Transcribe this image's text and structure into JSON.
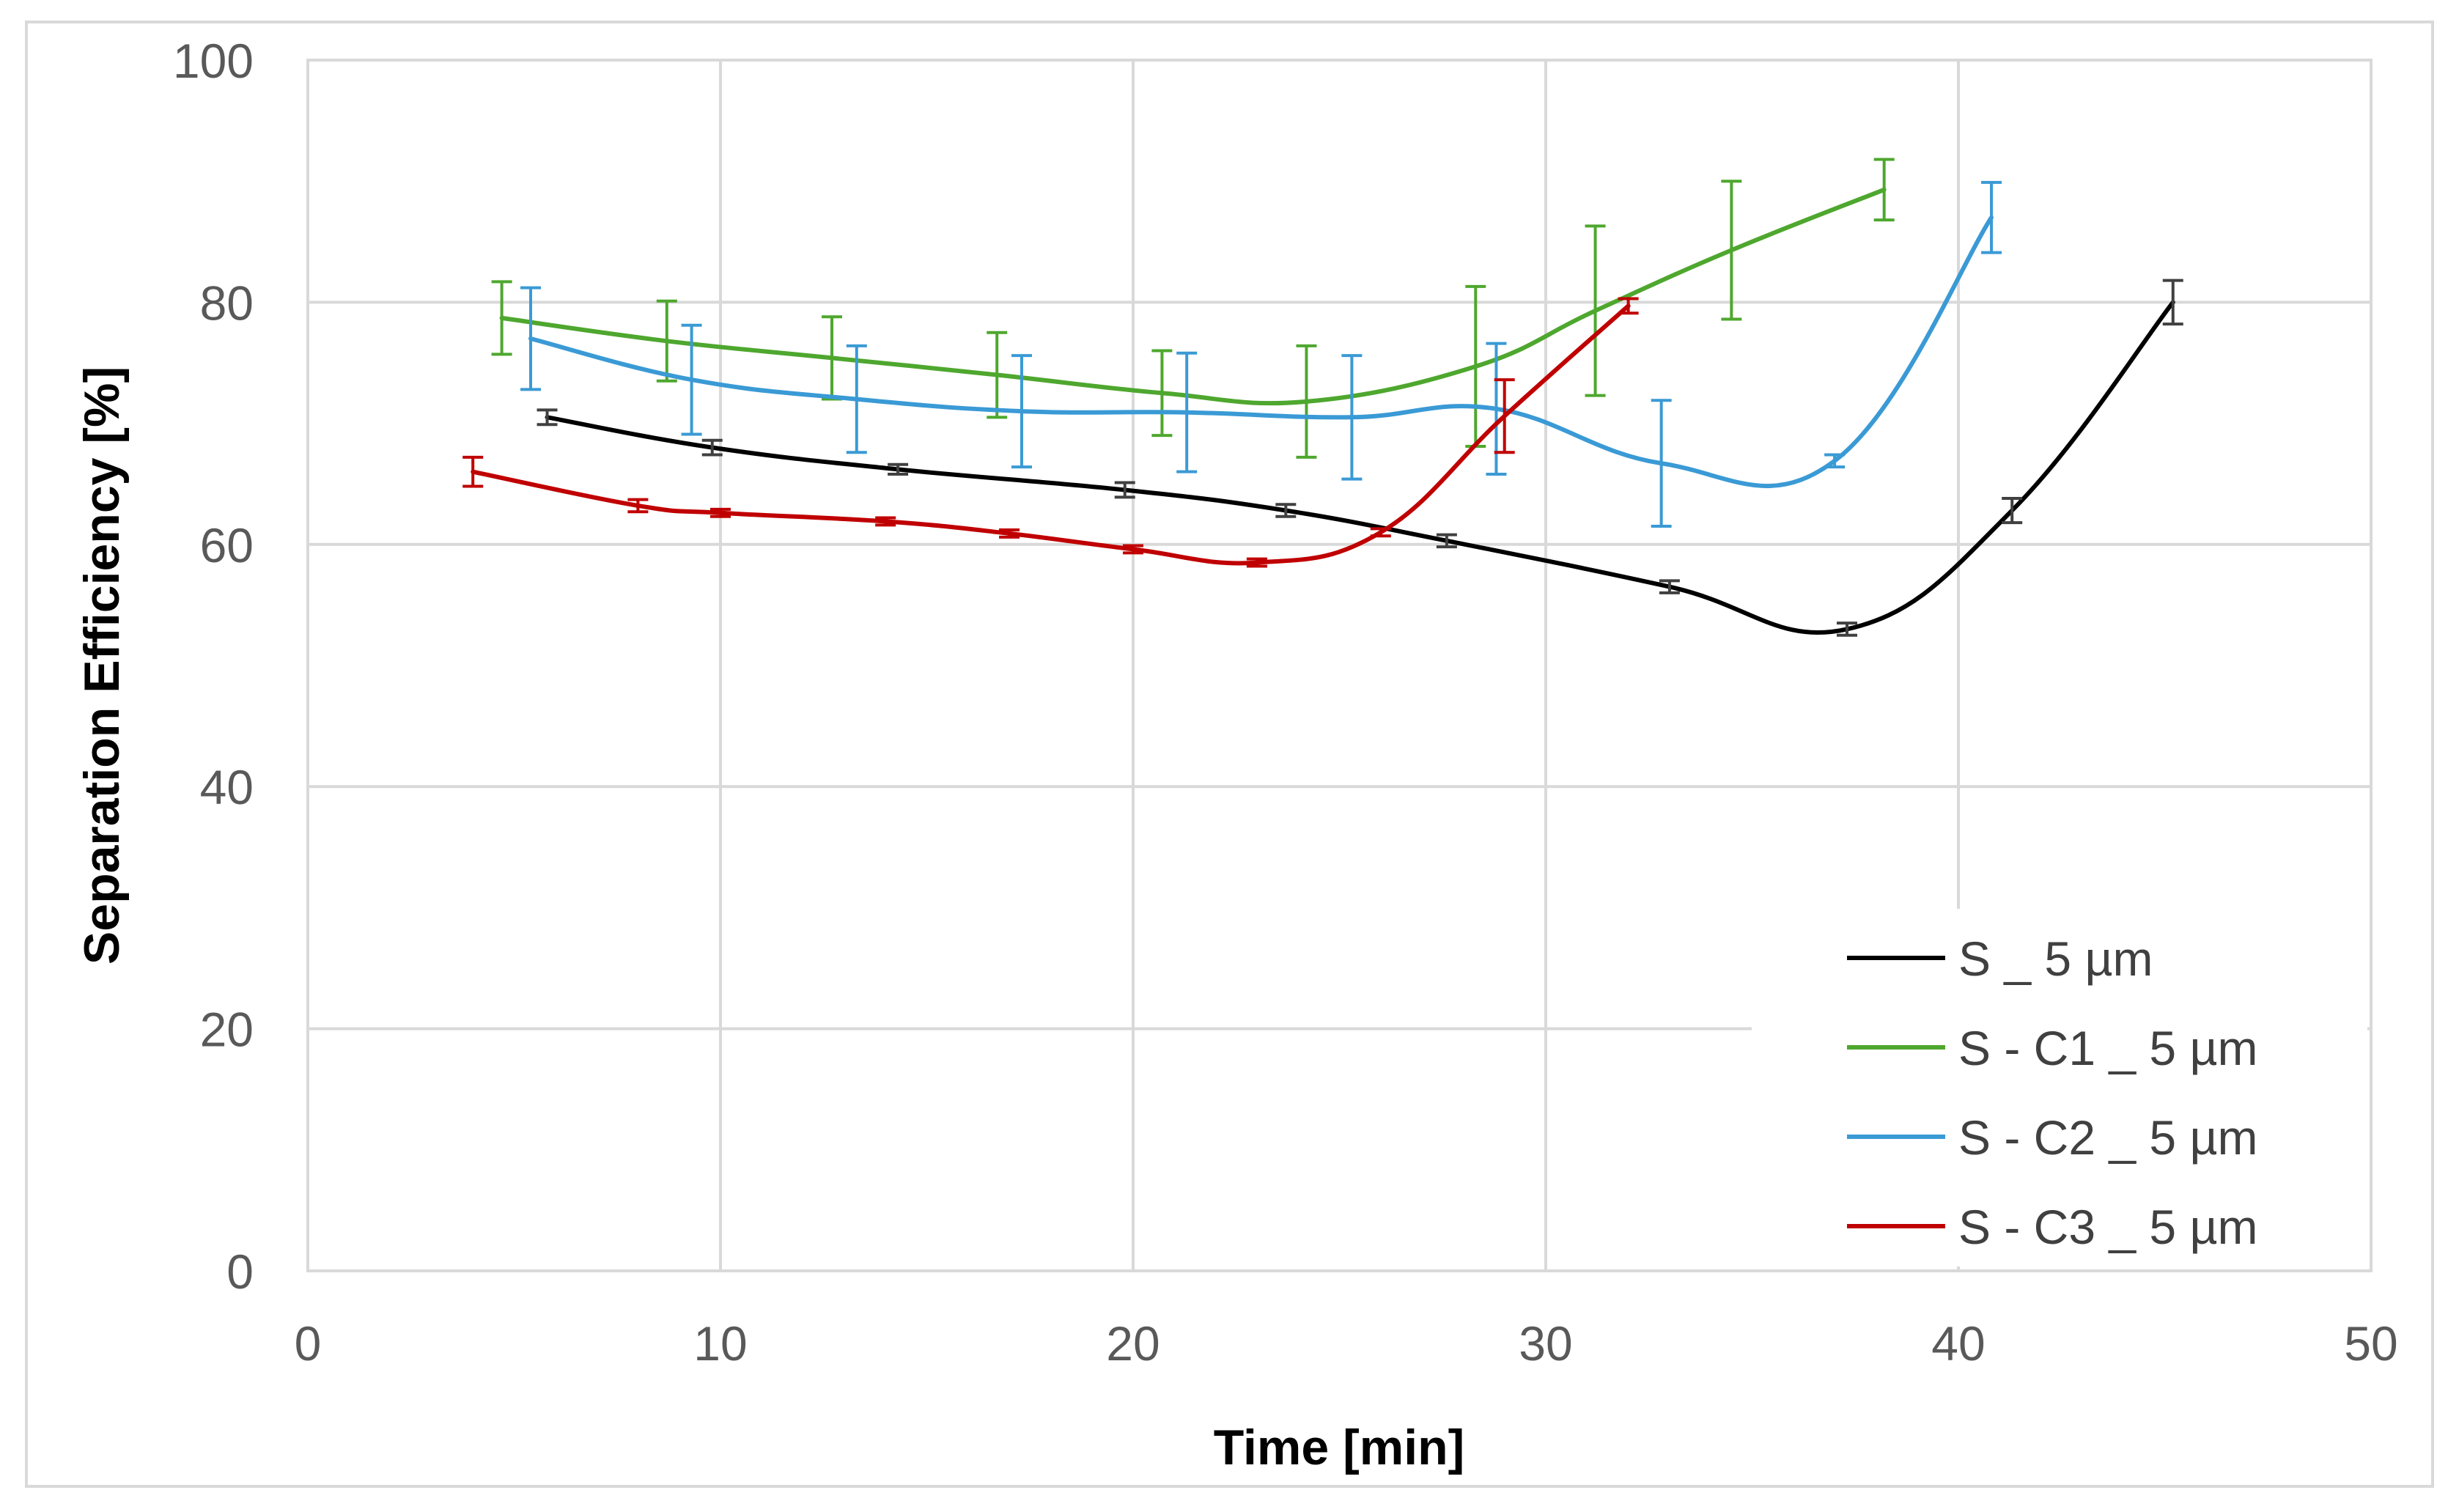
{
  "chart_data": {
    "type": "line",
    "title": "",
    "xlabel": "Time [min]",
    "ylabel": "Separation Efficiency [%]",
    "xlim": [
      0,
      50
    ],
    "ylim": [
      0,
      100
    ],
    "x_ticks": [
      0,
      10,
      20,
      30,
      40,
      50
    ],
    "y_ticks": [
      0,
      20,
      40,
      60,
      80,
      100
    ],
    "x_tick_labels": [
      "0",
      "10",
      "20",
      "30",
      "40",
      "50"
    ],
    "y_tick_labels": [
      "0",
      "20",
      "40",
      "60",
      "80",
      "100"
    ],
    "grid": true,
    "legend_position": "bottom-right",
    "series": [
      {
        "name": "S _ 5 µm",
        "color": "#000000",
        "errorbar_color": "#404040",
        "x": [
          5.8,
          9.8,
          14.3,
          19.8,
          23.7,
          27.6,
          33.0,
          37.3,
          41.3,
          45.2
        ],
        "y": [
          70.5,
          68.0,
          66.2,
          64.5,
          62.8,
          60.3,
          56.5,
          53.0,
          62.8,
          80.0
        ],
        "err": [
          0.6,
          0.6,
          0.4,
          0.6,
          0.5,
          0.5,
          0.5,
          0.5,
          1.0,
          1.8
        ]
      },
      {
        "name": "S - C1 _ 5 µm",
        "color": "#4EA72E",
        "errorbar_color": "#4EA72E",
        "x": [
          4.7,
          8.7,
          12.7,
          16.7,
          20.7,
          24.2,
          28.3,
          31.2,
          34.5,
          38.2
        ],
        "y": [
          78.7,
          76.8,
          75.4,
          74.0,
          72.5,
          71.8,
          74.7,
          79.3,
          84.3,
          89.3
        ],
        "err": [
          3.0,
          3.3,
          3.4,
          3.5,
          3.5,
          4.6,
          6.6,
          7.0,
          5.7,
          2.5
        ]
      },
      {
        "name": "S - C2 _ 5 µm",
        "color": "#3A9AD5",
        "errorbar_color": "#3A9AD5",
        "x": [
          5.4,
          9.3,
          13.3,
          17.3,
          21.3,
          25.3,
          28.8,
          32.8,
          37.0,
          40.8
        ],
        "y": [
          77.0,
          73.6,
          72.0,
          71.0,
          70.9,
          70.5,
          71.2,
          66.7,
          66.9,
          87.0
        ],
        "err": [
          4.2,
          4.5,
          4.4,
          4.6,
          4.9,
          5.1,
          5.4,
          5.2,
          0.5,
          2.9
        ]
      },
      {
        "name": "S - C3 _ 5 µm",
        "color": "#C00000",
        "errorbar_color": "#C00000",
        "x": [
          4.0,
          8.0,
          10.0,
          14.0,
          17.0,
          20.0,
          23.0,
          26.0,
          29.0,
          32.0
        ],
        "y": [
          66.0,
          63.2,
          62.6,
          61.9,
          60.9,
          59.6,
          58.5,
          61.0,
          70.6,
          79.7
        ],
        "err": [
          1.2,
          0.5,
          0.3,
          0.3,
          0.3,
          0.3,
          0.3,
          0.3,
          3.0,
          0.6
        ]
      }
    ]
  }
}
